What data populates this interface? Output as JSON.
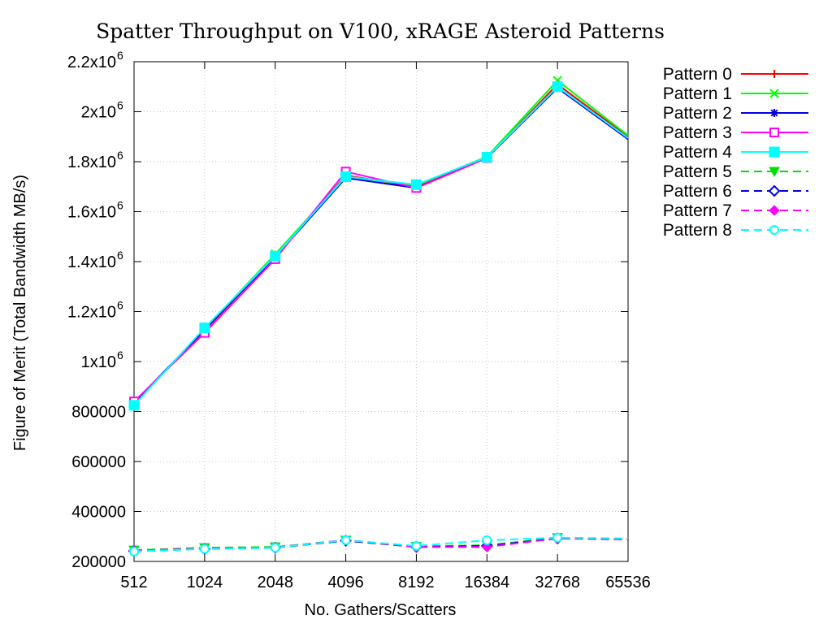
{
  "chart_data": {
    "type": "line",
    "title": "Spatter Throughput on V100, xRAGE Asteroid Patterns",
    "xlabel": "No. Gathers/Scatters",
    "ylabel": "Figure of Merit (Total Bandwidth MB/s)",
    "x_scale": "log2",
    "categories": [
      "512",
      "1024",
      "2048",
      "4096",
      "8192",
      "16384",
      "32768",
      "65536"
    ],
    "x": [
      512,
      1024,
      2048,
      4096,
      8192,
      16384,
      32768,
      65536
    ],
    "ylim": [
      200000,
      2200000
    ],
    "yticks": [
      {
        "value": 200000,
        "mantissa": "200000",
        "exp": ""
      },
      {
        "value": 400000,
        "mantissa": "400000",
        "exp": ""
      },
      {
        "value": 600000,
        "mantissa": "600000",
        "exp": ""
      },
      {
        "value": 800000,
        "mantissa": "800000",
        "exp": ""
      },
      {
        "value": 1000000,
        "mantissa": "1x10",
        "exp": "6"
      },
      {
        "value": 1200000,
        "mantissa": "1.2x10",
        "exp": "6"
      },
      {
        "value": 1400000,
        "mantissa": "1.4x10",
        "exp": "6"
      },
      {
        "value": 1600000,
        "mantissa": "1.6x10",
        "exp": "6"
      },
      {
        "value": 1800000,
        "mantissa": "1.8x10",
        "exp": "6"
      },
      {
        "value": 2000000,
        "mantissa": "2x10",
        "exp": "6"
      },
      {
        "value": 2200000,
        "mantissa": "2.2x10",
        "exp": "6"
      }
    ],
    "grid": true,
    "legend_position": "outside-top-right",
    "series": [
      {
        "name": "Pattern 0",
        "color": "#ff0000",
        "dash": false,
        "marker": "plus",
        "values": [
          835000,
          1125000,
          1420000,
          1745000,
          1700000,
          1815000,
          2110000,
          1900000
        ]
      },
      {
        "name": "Pattern 1",
        "color": "#00ff00",
        "dash": false,
        "marker": "cross",
        "values": [
          830000,
          1130000,
          1430000,
          1740000,
          1705000,
          1820000,
          2125000,
          1905000
        ]
      },
      {
        "name": "Pattern 2",
        "color": "#0000e0",
        "dash": false,
        "marker": "star",
        "values": [
          835000,
          1128000,
          1418000,
          1735000,
          1695000,
          1815000,
          2095000,
          1890000
        ]
      },
      {
        "name": "Pattern 3",
        "color": "#ff00ff",
        "dash": false,
        "marker": "square-open",
        "values": [
          840000,
          1115000,
          1410000,
          1760000,
          1695000,
          1815000,
          2100000,
          1895000
        ]
      },
      {
        "name": "Pattern 4",
        "color": "#00ffff",
        "dash": false,
        "marker": "square-filled",
        "values": [
          825000,
          1135000,
          1422000,
          1740000,
          1708000,
          1818000,
          2100000,
          1895000
        ]
      },
      {
        "name": "Pattern 5",
        "color": "#00e000",
        "dash": true,
        "marker": "triangle-down",
        "values": [
          245000,
          255000,
          258000,
          285000,
          260000,
          265000,
          295000,
          290000
        ]
      },
      {
        "name": "Pattern 6",
        "color": "#0000e0",
        "dash": true,
        "marker": "diamond-open",
        "values": [
          242000,
          250000,
          255000,
          283000,
          258000,
          262000,
          292000,
          288000
        ]
      },
      {
        "name": "Pattern 7",
        "color": "#ff00ff",
        "dash": true,
        "marker": "diamond-filled",
        "values": [
          243000,
          252000,
          256000,
          286000,
          258000,
          258000,
          292000,
          289000
        ]
      },
      {
        "name": "Pattern 8",
        "color": "#00ffff",
        "dash": true,
        "marker": "circle-open",
        "values": [
          240000,
          250000,
          255000,
          285000,
          262000,
          285000,
          295000,
          292000
        ]
      }
    ]
  }
}
